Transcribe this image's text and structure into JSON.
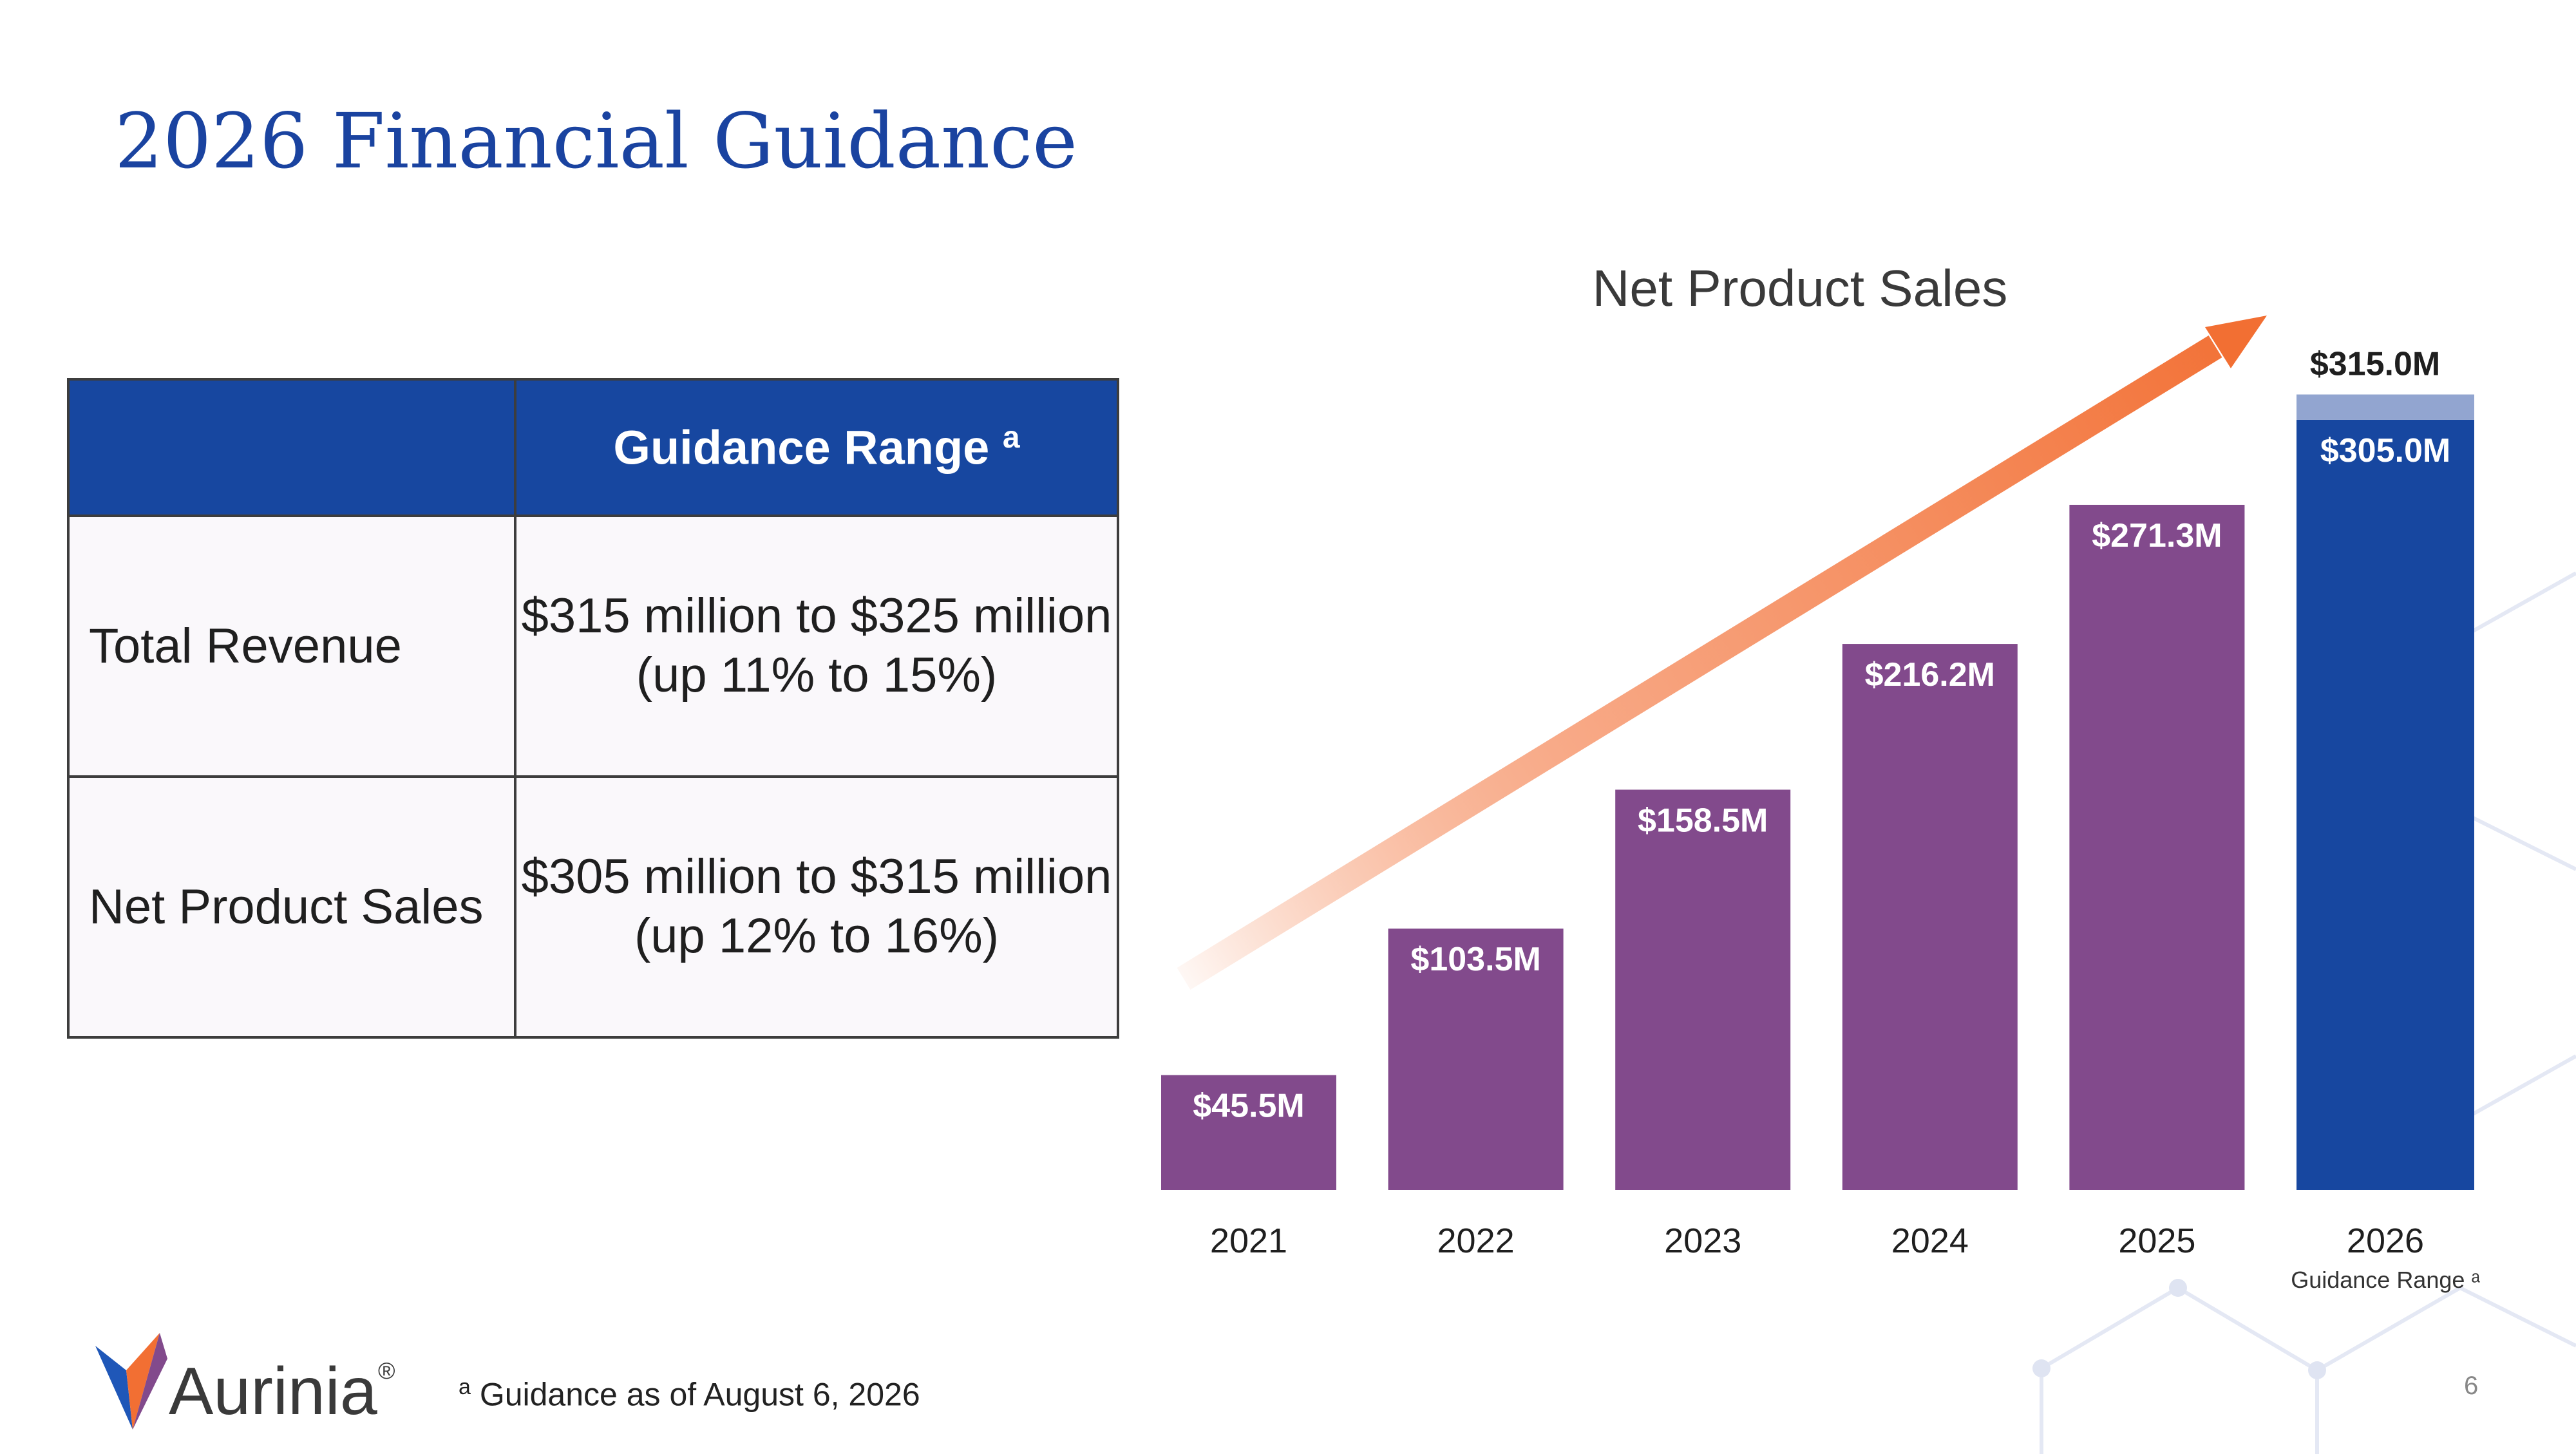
{
  "slide": {
    "title": "2026 Financial Guidance",
    "page_number": "6"
  },
  "table": {
    "header": {
      "label": "Guidance Range",
      "superscript": "a"
    },
    "rows": [
      {
        "label": "Total Revenue",
        "value_line1": "$315 million to $325 million",
        "value_line2": "(up 11% to 15%)"
      },
      {
        "label": "Net Product Sales",
        "value_line1": "$305 million to $315 million",
        "value_line2": "(up 12% to 16%)"
      }
    ]
  },
  "chart_data": {
    "type": "bar",
    "title": "Net Product Sales",
    "categories": [
      "2021",
      "2022",
      "2023",
      "2024",
      "2025",
      "2026"
    ],
    "category_sublabel": {
      "2026": "Guidance Range ᵃ"
    },
    "values": [
      45.5,
      103.5,
      158.5,
      216.2,
      271.3,
      305.0
    ],
    "labels": [
      "$45.5M",
      "$103.5M",
      "$158.5M",
      "$216.2M",
      "$271.3M",
      "$305.0M"
    ],
    "range_top": {
      "category": "2026",
      "value": 315.0,
      "label": "$315.0M"
    },
    "ylim": [
      0,
      315
    ],
    "grid": false,
    "colors": {
      "historical": "#824a8c",
      "guidance_base": "#1747a0",
      "guidance_range": "#92a5d0",
      "trend_arrow": "#f26f33"
    }
  },
  "footer": {
    "logo_text": "Aurinia",
    "logo_mark": "®",
    "footnote_marker": "a",
    "footnote_text": " Guidance as of August 6, 2026"
  },
  "colors": {
    "title": "#1a43a0",
    "table_header": "#1747a0",
    "table_body": "#faf8fb"
  }
}
